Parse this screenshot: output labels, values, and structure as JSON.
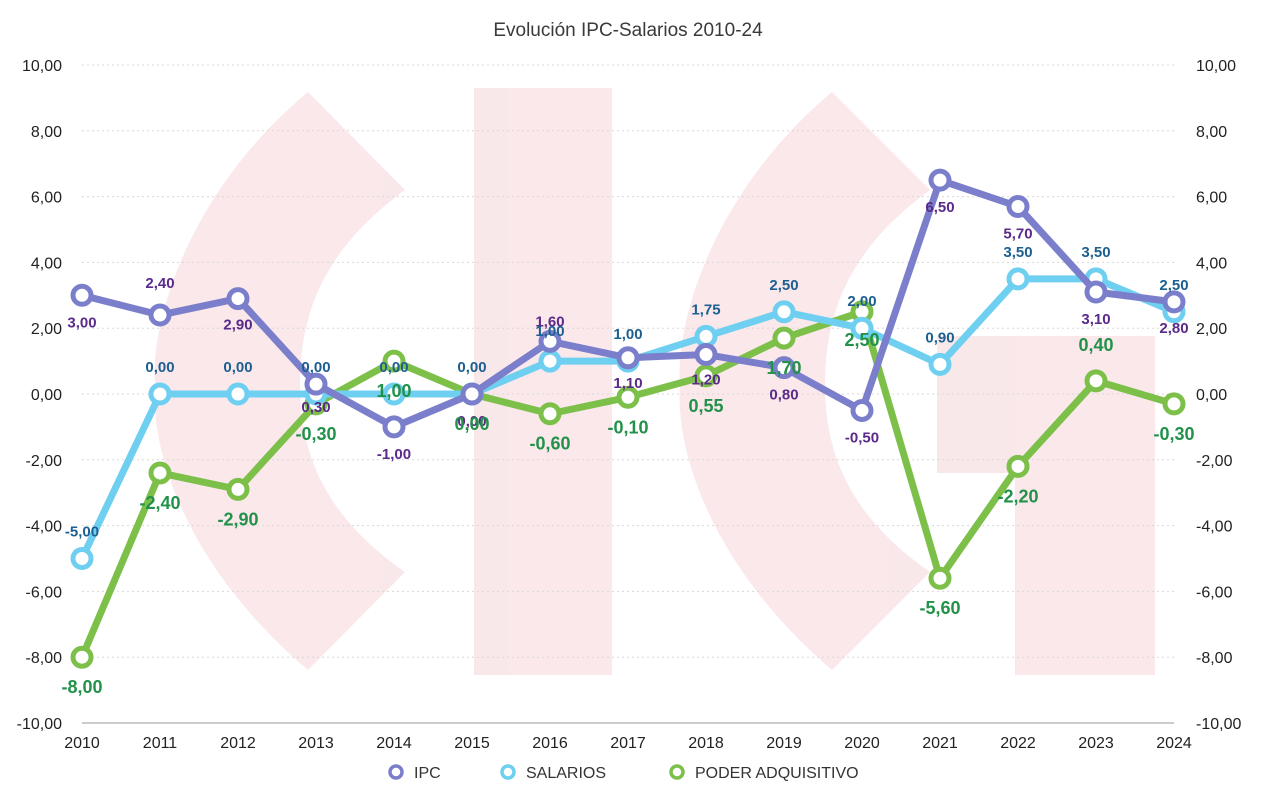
{
  "chart_data": {
    "type": "line",
    "title": "Evolución IPC-Salarios 2010-24",
    "x": [
      "2010",
      "2011",
      "2012",
      "2013",
      "2014",
      "2015",
      "2016",
      "2017",
      "2018",
      "2019",
      "2020",
      "2021",
      "2022",
      "2023",
      "2024"
    ],
    "ylim": [
      -10,
      10
    ],
    "yticks": [
      "-10,00",
      "-8,00",
      "-6,00",
      "-4,00",
      "-2,00",
      "0,00",
      "2,00",
      "4,00",
      "6,00",
      "8,00",
      "10,00"
    ],
    "grid": true,
    "legend_position": "bottom",
    "series": [
      {
        "name": "IPC",
        "color": "#7b7fcb",
        "label_color": "#5a2a8a",
        "values": [
          3.0,
          2.4,
          2.9,
          0.3,
          -1.0,
          0.0,
          1.6,
          1.1,
          1.2,
          0.8,
          -0.5,
          6.5,
          5.7,
          3.1,
          2.8
        ],
        "labels": [
          "3,00",
          "2,40",
          "2,90",
          "0,30",
          "-1,00",
          "0,00",
          "1,60",
          "1,10",
          "1,20",
          "0,80",
          "-0,50",
          "6,50",
          "5,70",
          "3,10",
          "2,80"
        ]
      },
      {
        "name": "SALARIOS",
        "color": "#6fcff0",
        "label_color": "#1d5f91",
        "values": [
          -5.0,
          0.0,
          0.0,
          0.0,
          0.0,
          0.0,
          1.0,
          1.0,
          1.75,
          2.5,
          2.0,
          0.9,
          3.5,
          3.5,
          2.5
        ],
        "labels": [
          "-5,00",
          "0,00",
          "0,00",
          "0,00",
          "0,00",
          "0,00",
          "1,00",
          "1,00",
          "1,75",
          "2,50",
          "2,00",
          "0,90",
          "3,50",
          "3,50",
          "2,50"
        ]
      },
      {
        "name": "PODER ADQUISITIVO",
        "color": "#7cc04a",
        "label_color": "#22914a",
        "values": [
          -8.0,
          -2.4,
          -2.9,
          -0.3,
          1.0,
          0.0,
          -0.6,
          -0.1,
          0.55,
          1.7,
          2.5,
          -5.6,
          -2.2,
          0.4,
          -0.3
        ],
        "labels": [
          "-8,00",
          "-2,40",
          "-2,90",
          "-0,30",
          "1,00",
          "0,00",
          "-0,60",
          "-0,10",
          "0,55",
          "1,70",
          "2,50",
          "-5,60",
          "-2,20",
          "0,40",
          "-0,30"
        ]
      }
    ]
  }
}
